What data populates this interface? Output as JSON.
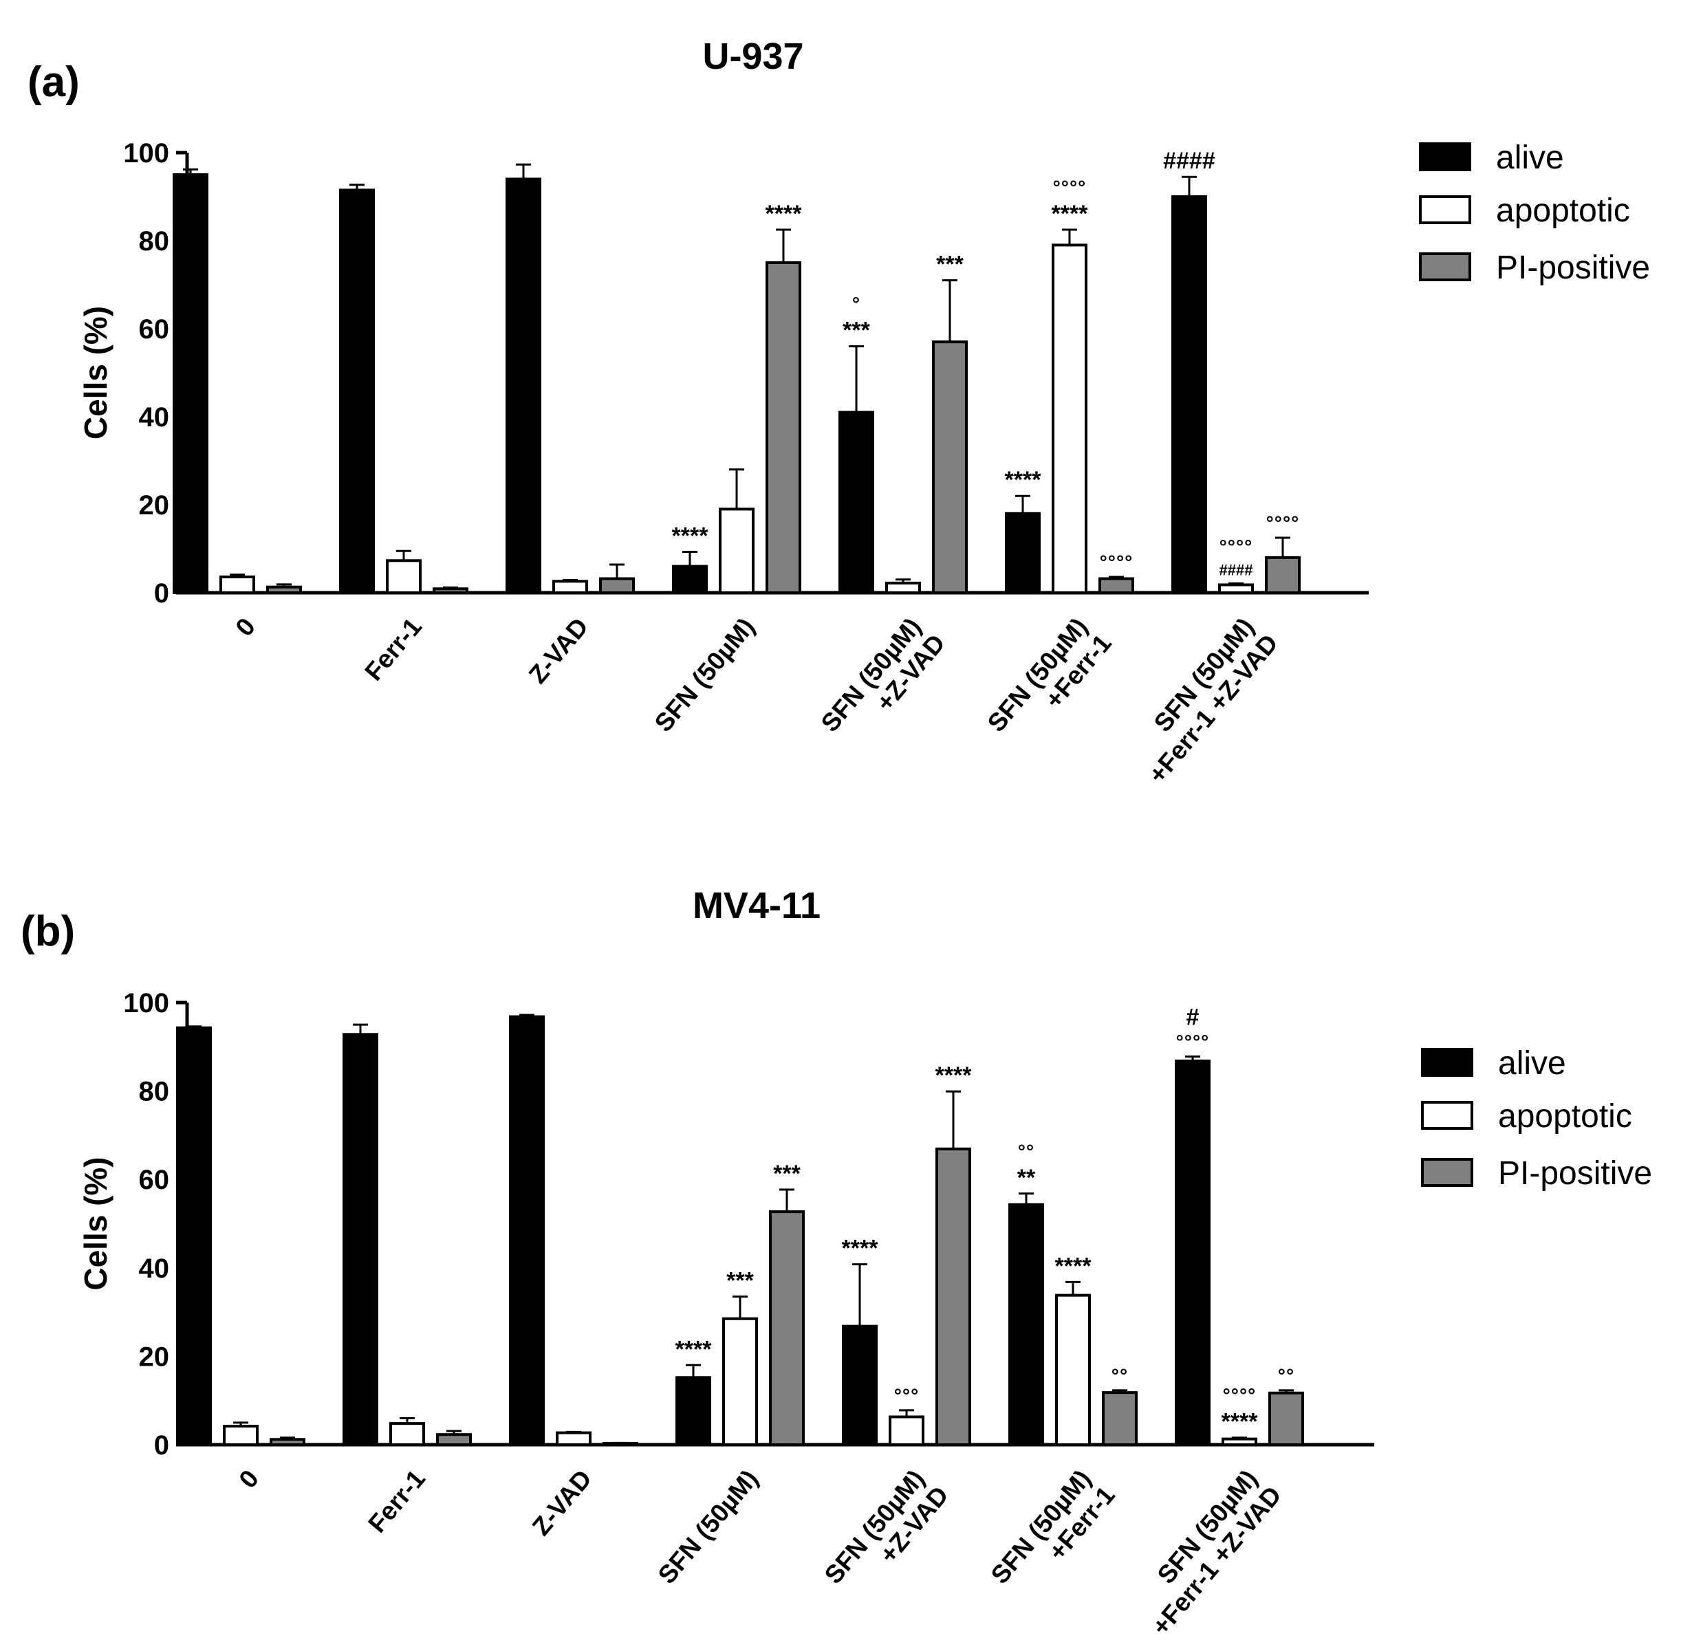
{
  "chart_data": [
    {
      "type": "bar",
      "panel_label": "(a)",
      "title": "U-937",
      "xlabel": "",
      "ylabel": "Cells (%)",
      "ylim": [
        0,
        100
      ],
      "yticks": [
        "0",
        "20",
        "40",
        "60",
        "80",
        "100"
      ],
      "categories": [
        [
          "0"
        ],
        [
          "Ferr-1"
        ],
        [
          "Z-VAD"
        ],
        [
          "SFN (50µM)"
        ],
        [
          "SFN (50µM)",
          "+Z-VAD"
        ],
        [
          "SFN (50µM)",
          "+Ferr-1"
        ],
        [
          "SFN (50µM)",
          "+Ferr-1 +Z-VAD"
        ]
      ],
      "series": [
        {
          "name": "alive",
          "color": "#000000",
          "values": [
            95,
            91.5,
            94,
            6,
            41,
            18,
            90
          ],
          "errors": [
            1.2,
            1.2,
            3.3,
            3.3,
            15,
            4,
            4.5
          ],
          "annotations": [
            [],
            [],
            [],
            [
              "****"
            ],
            [
              "***",
              "°"
            ],
            [
              "****"
            ],
            [
              "####"
            ]
          ]
        },
        {
          "name": "apoptotic",
          "color": "#ffffff",
          "values": [
            3.6,
            7.3,
            2.6,
            19,
            2.2,
            79,
            1.8
          ],
          "errors": [
            0.5,
            2.2,
            0.3,
            9,
            0.8,
            3.5,
            0.3
          ],
          "annotations": [
            [],
            [],
            [],
            [],
            [],
            [
              "****",
              "°°°°"
            ],
            [
              "####",
              "°°°°"
            ]
          ]
        },
        {
          "name": "PI-positive",
          "color": "#808080",
          "values": [
            1.3,
            0.9,
            3.2,
            75,
            57,
            3.2,
            8
          ],
          "errors": [
            0.6,
            0.3,
            3.2,
            7.5,
            14,
            0.4,
            4.5
          ],
          "annotations": [
            [],
            [],
            [],
            [
              "****"
            ],
            [
              "***"
            ],
            [
              "°°°°"
            ],
            [
              "°°°°"
            ]
          ]
        }
      ],
      "legend": [
        "alive",
        "apoptotic",
        "PI-positive"
      ],
      "legend_position": "right"
    },
    {
      "type": "bar",
      "panel_label": "(b)",
      "title": "MV4-11",
      "xlabel": "",
      "ylabel": "Cells (%)",
      "ylim": [
        0,
        100
      ],
      "yticks": [
        "0",
        "20",
        "40",
        "60",
        "80",
        "100"
      ],
      "categories": [
        [
          "0"
        ],
        [
          "Ferr-1"
        ],
        [
          "Z-VAD"
        ],
        [
          "SFN (50µM)"
        ],
        [
          "SFN (50µM)",
          "+Z-VAD"
        ],
        [
          "SFN (50µM)",
          "+Ferr-1"
        ],
        [
          "SFN (50µM)",
          "+Ferr-1 +Z-VAD"
        ]
      ],
      "series": [
        {
          "name": "alive",
          "color": "#000000",
          "values": [
            94.3,
            92.8,
            96.8,
            15.2,
            26.8,
            54.3,
            86.8
          ],
          "errors": [
            0.3,
            2.2,
            0.4,
            2.8,
            14,
            2.5,
            1
          ],
          "annotations": [
            [],
            [],
            [],
            [
              "****"
            ],
            [
              "****"
            ],
            [
              "**",
              "°°"
            ],
            [
              "°°°°",
              "#"
            ]
          ]
        },
        {
          "name": "apoptotic",
          "color": "#ffffff",
          "values": [
            4.2,
            4.8,
            2.7,
            28.5,
            6.3,
            33.8,
            1.3
          ],
          "errors": [
            0.8,
            1.2,
            0.2,
            5,
            1.5,
            3,
            0.3
          ],
          "annotations": [
            [],
            [],
            [],
            [
              "***"
            ],
            [
              "°°°"
            ],
            [
              "****"
            ],
            [
              "****",
              "°°°°"
            ]
          ]
        },
        {
          "name": "PI-positive",
          "color": "#808080",
          "values": [
            1.2,
            2.3,
            0.3,
            52.7,
            66.9,
            11.8,
            11.7
          ],
          "errors": [
            0.4,
            0.8,
            0.1,
            5,
            13,
            0.5,
            0.6
          ],
          "annotations": [
            [],
            [],
            [],
            [
              "***"
            ],
            [
              "****"
            ],
            [
              "°°"
            ],
            [
              "°°"
            ]
          ]
        }
      ],
      "legend": [
        "alive",
        "apoptotic",
        "PI-positive"
      ],
      "legend_position": "right"
    }
  ]
}
